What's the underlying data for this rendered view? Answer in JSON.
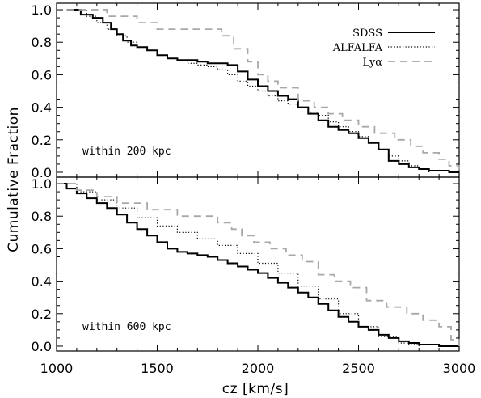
{
  "chart_data": [
    {
      "type": "line",
      "panel": "top",
      "annotation": "within 200 kpc",
      "xlim": [
        1000,
        3000
      ],
      "ylim": [
        -0.03,
        1.04
      ],
      "yticks": [
        "0.0",
        "0.2",
        "0.4",
        "0.6",
        "0.8",
        "1.0"
      ],
      "grid": false,
      "legend_position": "top-right",
      "series": [
        {
          "name": "SDSS",
          "style": "solid",
          "color": "#000000",
          "x": [
            1050,
            1120,
            1180,
            1230,
            1270,
            1300,
            1330,
            1370,
            1400,
            1450,
            1500,
            1550,
            1600,
            1650,
            1700,
            1750,
            1800,
            1850,
            1900,
            1950,
            2000,
            2050,
            2100,
            2150,
            2200,
            2250,
            2300,
            2350,
            2400,
            2450,
            2500,
            2550,
            2600,
            2650,
            2700,
            2750,
            2800,
            2850,
            2900,
            2950,
            3000
          ],
          "y": [
            1.0,
            0.97,
            0.95,
            0.92,
            0.88,
            0.85,
            0.81,
            0.78,
            0.77,
            0.75,
            0.72,
            0.7,
            0.69,
            0.69,
            0.68,
            0.67,
            0.67,
            0.66,
            0.62,
            0.57,
            0.53,
            0.5,
            0.47,
            0.45,
            0.4,
            0.36,
            0.32,
            0.28,
            0.26,
            0.24,
            0.21,
            0.18,
            0.14,
            0.07,
            0.05,
            0.03,
            0.02,
            0.01,
            0.01,
            0.0,
            0.0
          ]
        },
        {
          "name": "ALFALFA",
          "style": "dotted",
          "color": "#000000",
          "x": [
            1050,
            1150,
            1200,
            1250,
            1300,
            1350,
            1400,
            1450,
            1500,
            1550,
            1600,
            1650,
            1700,
            1750,
            1800,
            1850,
            1900,
            1950,
            2000,
            2050,
            2100,
            2150,
            2200,
            2250,
            2300,
            2350,
            2400,
            2450,
            2500,
            2550,
            2600,
            2650,
            2700,
            2750,
            2800,
            2850
          ],
          "y": [
            1.0,
            0.96,
            0.92,
            0.88,
            0.84,
            0.8,
            0.77,
            0.75,
            0.72,
            0.7,
            0.69,
            0.67,
            0.66,
            0.65,
            0.63,
            0.6,
            0.56,
            0.53,
            0.5,
            0.47,
            0.44,
            0.42,
            0.4,
            0.37,
            0.35,
            0.31,
            0.28,
            0.25,
            0.22,
            0.18,
            0.14,
            0.1,
            0.07,
            0.04,
            0.02,
            0.0
          ]
        },
        {
          "name": "Lyα",
          "style": "dashed",
          "color": "#a8a8a8",
          "x": [
            1050,
            1250,
            1400,
            1500,
            1820,
            1880,
            1950,
            2000,
            2050,
            2100,
            2200,
            2280,
            2350,
            2420,
            2500,
            2580,
            2680,
            2760,
            2820,
            2900,
            2950,
            3000
          ],
          "y": [
            1.0,
            0.96,
            0.92,
            0.88,
            0.84,
            0.76,
            0.68,
            0.6,
            0.56,
            0.52,
            0.44,
            0.4,
            0.36,
            0.32,
            0.28,
            0.24,
            0.2,
            0.16,
            0.12,
            0.08,
            0.04,
            0.0
          ]
        }
      ]
    },
    {
      "type": "line",
      "panel": "bottom",
      "annotation": "within 600 kpc",
      "xlim": [
        1000,
        3000
      ],
      "ylim": [
        -0.03,
        1.04
      ],
      "xticks": [
        "1000",
        "1500",
        "2000",
        "2500",
        "3000"
      ],
      "yticks": [
        "0.0",
        "0.2",
        "0.4",
        "0.6",
        "0.8",
        "1.0"
      ],
      "xlabel": "cz [km/s]",
      "ylabel": "Cumulative Fraction",
      "grid": false,
      "series": [
        {
          "name": "SDSS",
          "style": "solid",
          "color": "#000000",
          "x": [
            1000,
            1050,
            1100,
            1150,
            1200,
            1250,
            1300,
            1350,
            1400,
            1450,
            1500,
            1550,
            1600,
            1650,
            1700,
            1750,
            1800,
            1850,
            1900,
            1950,
            2000,
            2050,
            2100,
            2150,
            2200,
            2250,
            2300,
            2350,
            2400,
            2450,
            2500,
            2550,
            2600,
            2650,
            2700,
            2750,
            2800,
            2850,
            2900,
            2950,
            3000
          ],
          "y": [
            1.0,
            0.97,
            0.94,
            0.91,
            0.88,
            0.85,
            0.81,
            0.76,
            0.72,
            0.68,
            0.64,
            0.6,
            0.58,
            0.57,
            0.56,
            0.55,
            0.53,
            0.51,
            0.49,
            0.47,
            0.45,
            0.42,
            0.39,
            0.36,
            0.33,
            0.3,
            0.26,
            0.22,
            0.18,
            0.15,
            0.12,
            0.1,
            0.07,
            0.05,
            0.03,
            0.02,
            0.01,
            0.01,
            0.0,
            0.0,
            0.0
          ]
        },
        {
          "name": "ALFALFA",
          "style": "dotted",
          "color": "#000000",
          "x": [
            1000,
            1100,
            1200,
            1300,
            1400,
            1500,
            1600,
            1700,
            1800,
            1900,
            2000,
            2100,
            2200,
            2300,
            2400,
            2500,
            2600,
            2700,
            2750,
            2800
          ],
          "y": [
            1.0,
            0.95,
            0.9,
            0.85,
            0.79,
            0.74,
            0.7,
            0.66,
            0.62,
            0.57,
            0.51,
            0.45,
            0.37,
            0.29,
            0.2,
            0.12,
            0.06,
            0.02,
            0.01,
            0.0
          ]
        },
        {
          "name": "Lyα",
          "style": "dashed",
          "color": "#a8a8a8",
          "x": [
            1000,
            1100,
            1200,
            1300,
            1450,
            1600,
            1800,
            1870,
            1920,
            1980,
            2060,
            2140,
            2220,
            2300,
            2380,
            2460,
            2540,
            2640,
            2740,
            2820,
            2900,
            2960,
            3000
          ],
          "y": [
            1.0,
            0.96,
            0.92,
            0.88,
            0.84,
            0.8,
            0.76,
            0.72,
            0.68,
            0.64,
            0.6,
            0.56,
            0.52,
            0.44,
            0.4,
            0.36,
            0.28,
            0.24,
            0.2,
            0.16,
            0.12,
            0.04,
            0.0
          ]
        }
      ]
    }
  ]
}
